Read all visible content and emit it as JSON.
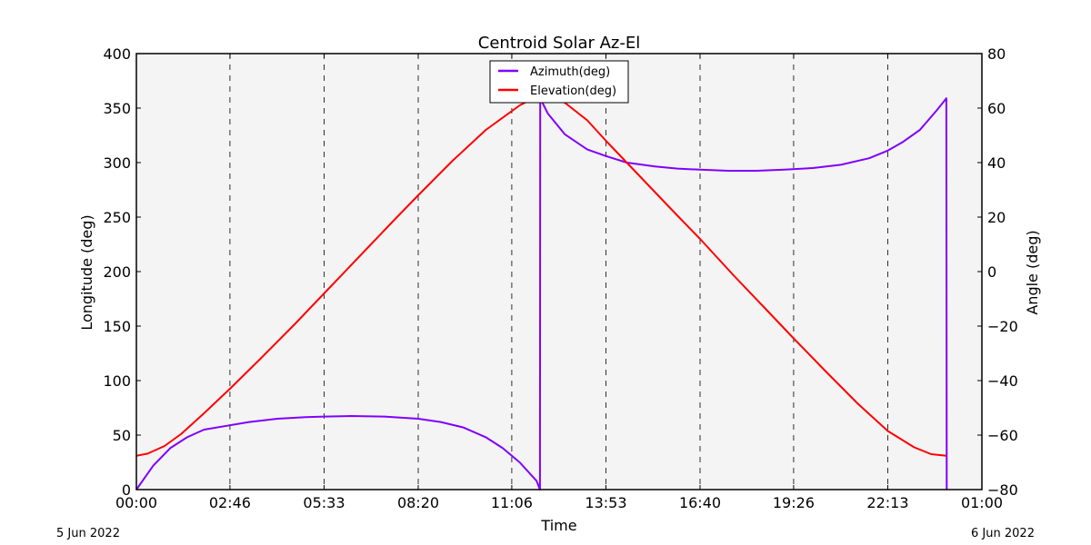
{
  "chart_data": {
    "type": "line",
    "title": "Centroid Solar Az-El",
    "xlabel": "Time",
    "ylabel": "Longitude (deg)",
    "y2label": "Angle (deg)",
    "date_start": "5 Jun 2022",
    "date_end": "6 Jun 2022",
    "x_ticks": [
      "00:00",
      "02:46",
      "05:33",
      "08:20",
      "11:06",
      "13:53",
      "16:40",
      "19:26",
      "22:13",
      "01:00"
    ],
    "x_tick_minutes": [
      0,
      166,
      333,
      500,
      666,
      833,
      1000,
      1166,
      1333,
      1500
    ],
    "ylim": [
      0,
      400
    ],
    "y_ticks": [
      0,
      50,
      100,
      150,
      200,
      250,
      300,
      350,
      400
    ],
    "y2lim": [
      -80,
      80
    ],
    "y2_ticks": [
      -80,
      -60,
      -40,
      -20,
      0,
      20,
      40,
      60,
      80
    ],
    "grid": "vertical dashed",
    "legend_position": "upper center",
    "series": [
      {
        "name": "Azimuth(deg)",
        "axis": "left",
        "color": "#7f00ff",
        "x_minutes": [
          0,
          30,
          60,
          90,
          120,
          166,
          200,
          250,
          300,
          333,
          380,
          440,
          500,
          540,
          580,
          620,
          650,
          680,
          710,
          716,
          716.5,
          730,
          760,
          800,
          833,
          870,
          920,
          960,
          1000,
          1050,
          1100,
          1150,
          1200,
          1250,
          1300,
          1333,
          1360,
          1390,
          1420,
          1437,
          1437.5
        ],
        "values": [
          0,
          22,
          38,
          48,
          55,
          59,
          62,
          65,
          66.5,
          67,
          67.5,
          67,
          65,
          62,
          57,
          48,
          38,
          25,
          8,
          0,
          359,
          345,
          326,
          312,
          306,
          300,
          296.5,
          294.5,
          293.5,
          292.5,
          292.5,
          293.5,
          295,
          298,
          304,
          311,
          319,
          330,
          348,
          359,
          0
        ]
      },
      {
        "name": "Elevation(deg)",
        "axis": "right",
        "color": "#ff0000",
        "x_minutes": [
          0,
          20,
          50,
          80,
          120,
          166,
          220,
          280,
          333,
          400,
          460,
          500,
          560,
          620,
          680,
          718,
          760,
          800,
          833,
          900,
          960,
          1000,
          1060,
          1120,
          1166,
          1220,
          1280,
          1333,
          1380,
          1410,
          1437
        ],
        "values": [
          -67.6,
          -66.8,
          -64,
          -59.5,
          -52,
          -43,
          -32,
          -19.5,
          -8,
          6.5,
          19.5,
          28,
          40.5,
          52,
          61,
          65,
          62,
          55.5,
          48,
          33.5,
          20.5,
          12,
          -1.5,
          -14.5,
          -24.5,
          -36,
          -48.5,
          -58.5,
          -64.5,
          -67,
          -67.6
        ]
      }
    ]
  }
}
